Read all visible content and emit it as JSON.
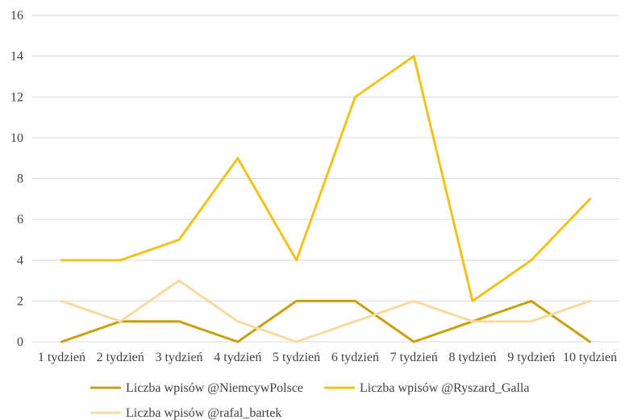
{
  "chart_data": {
    "type": "line",
    "categories": [
      "1 tydzień",
      "2 tydzień",
      "3 tydzień",
      "4 tydzień",
      "5 tydzień",
      "6 tydzień",
      "7 tydzień",
      "8 tydzień",
      "9 tydzień",
      "10 tydzień"
    ],
    "ylim": [
      0,
      16
    ],
    "yticks": [
      0,
      2,
      4,
      6,
      8,
      10,
      12,
      14,
      16
    ],
    "grid": true,
    "legend_position": "bottom",
    "series": [
      {
        "name": "Liczba wpisów @NiemcywPolsce",
        "color": "#c9a00c",
        "values": [
          0,
          1,
          1,
          0,
          2,
          2,
          0,
          1,
          2,
          0
        ]
      },
      {
        "name": "Liczba wpisów @Ryszard_Galla",
        "color": "#f2c21b",
        "values": [
          4,
          4,
          5,
          9,
          4,
          12,
          14,
          2,
          4,
          7
        ]
      },
      {
        "name": "Liczba wpisów @rafal_bartek",
        "color": "#f9d9a0",
        "values": [
          2,
          1,
          3,
          1,
          0,
          1,
          2,
          1,
          1,
          2
        ]
      }
    ]
  }
}
